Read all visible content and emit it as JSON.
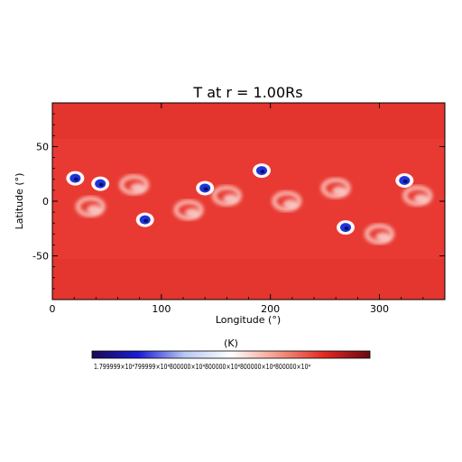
{
  "chart_data": {
    "type": "heatmap",
    "title": "T at r = 1.00Rs",
    "xlabel": "Longitude (°)",
    "ylabel": "Latitude (°)",
    "xlim": [
      0,
      360
    ],
    "ylim": [
      -90,
      90
    ],
    "xticks": [
      "0",
      "100",
      "200",
      "300"
    ],
    "yticks": [
      "50",
      "0",
      "-50"
    ],
    "colorbar": {
      "title": "(K)",
      "tick_labels": "1.799999×10⁴799999×10⁴800000×10⁴800000×10⁴800000×10⁴800000×10⁴",
      "colors": [
        "#1a0a55",
        "#1b1bd6",
        "#b8c8f2",
        "#ffffff",
        "#f49a8a",
        "#e32a22",
        "#6a0812"
      ]
    },
    "field": {
      "background_color": "#e83a33",
      "features": [
        {
          "name": "cool-spot",
          "lon": 21,
          "lat": 21
        },
        {
          "name": "cool-spot",
          "lon": 44,
          "lat": 16
        },
        {
          "name": "cool-spot",
          "lon": 85,
          "lat": -17
        },
        {
          "name": "cool-spot",
          "lon": 140,
          "lat": 12
        },
        {
          "name": "cool-spot",
          "lon": 192,
          "lat": 28
        },
        {
          "name": "cool-spot",
          "lon": 269,
          "lat": -24
        },
        {
          "name": "cool-spot",
          "lon": 323,
          "lat": 19
        },
        {
          "name": "warm-loop",
          "lon": 35,
          "lat": -5
        },
        {
          "name": "warm-loop",
          "lon": 75,
          "lat": 15
        },
        {
          "name": "warm-loop",
          "lon": 125,
          "lat": -8
        },
        {
          "name": "warm-loop",
          "lon": 160,
          "lat": 5
        },
        {
          "name": "warm-loop",
          "lon": 215,
          "lat": 0
        },
        {
          "name": "warm-loop",
          "lon": 260,
          "lat": 12
        },
        {
          "name": "warm-loop",
          "lon": 300,
          "lat": -30
        },
        {
          "name": "warm-loop",
          "lon": 335,
          "lat": 5
        }
      ]
    }
  }
}
